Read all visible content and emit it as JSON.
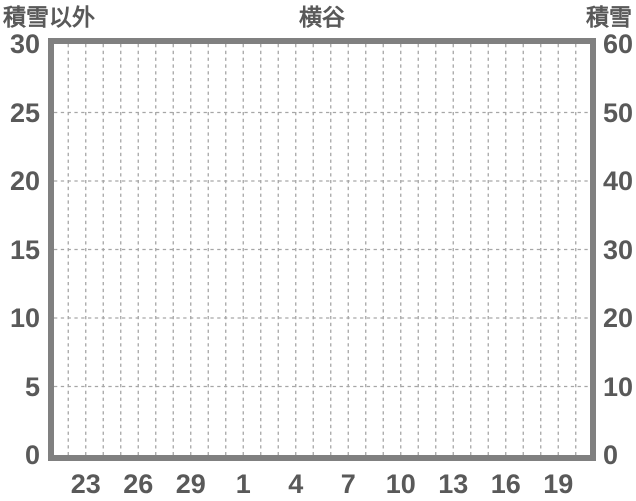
{
  "chart_data": {
    "type": "line",
    "title": "横谷",
    "left_axis": {
      "title": "積雪以外",
      "min": 0,
      "max": 30,
      "step": 5,
      "ticks": [
        "30",
        "25",
        "20",
        "15",
        "10",
        "5",
        "0"
      ]
    },
    "right_axis": {
      "title": "積雪",
      "min": 0,
      "max": 60,
      "step": 10,
      "ticks": [
        "60",
        "50",
        "40",
        "30",
        "20",
        "10",
        "0"
      ]
    },
    "x_axis": {
      "tick_labels": [
        "23",
        "26",
        "29",
        "1",
        "4",
        "7",
        "10",
        "13",
        "16",
        "19"
      ],
      "gridline_count": 30,
      "label_gridline_indices": [
        1,
        4,
        7,
        10,
        13,
        16,
        19,
        22,
        25,
        28
      ]
    },
    "series": [],
    "grid": true,
    "legend": "none"
  },
  "colors": {
    "text": "#595959",
    "plot_border": "#808080",
    "gridline": "#a6a6a6",
    "background": "#ffffff"
  }
}
